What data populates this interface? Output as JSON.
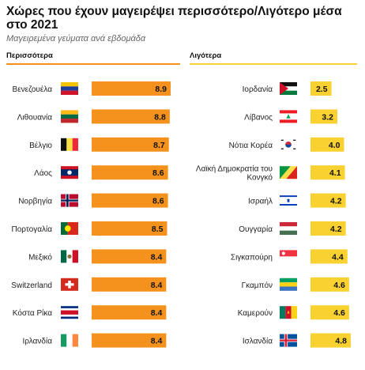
{
  "title": "Χώρες που έχουν μαγειρέψει περισσότερο/Λιγότερο μέσα στο 2021",
  "subtitle": "Μαγειρεμένα γεύματα ανά εβδομάδα",
  "colors": {
    "most_bar": "#F5921E",
    "least_bar": "#F9D130",
    "rule_most": "#F5921E",
    "rule_least": "#F9D130"
  },
  "chart_data": [
    {
      "type": "bar",
      "title": "Περισσότερα",
      "categories": [
        "Βενεζουέλα",
        "Λιθουανία",
        "Βέλγιο",
        "Λάος",
        "Νορβηγία",
        "Πορτογαλία",
        "Μεξικό",
        "Switzerland",
        "Κόστα Ρίκα",
        "Ιρλανδία"
      ],
      "values": [
        8.9,
        8.8,
        8.7,
        8.6,
        8.6,
        8.5,
        8.4,
        8.4,
        8.4,
        8.4
      ],
      "value_labels": [
        "8.9",
        "8.8",
        "8.7",
        "8.6",
        "8.6",
        "8.5",
        "8.4",
        "8.4",
        "8.4",
        "8.4"
      ],
      "flags": [
        "venezuela-flag",
        "lithuania-flag",
        "belgium-flag",
        "laos-flag",
        "norway-flag",
        "portugal-flag",
        "mexico-flag",
        "switzerland-flag",
        "costa-rica-flag",
        "ireland-flag"
      ],
      "orientation": "horizontal",
      "xlim": [
        0,
        8.9
      ]
    },
    {
      "type": "bar",
      "title": "Λιγότερα",
      "categories": [
        "Ιορδανία",
        "Λίβανος",
        "Νότια Κορέα",
        "Λαϊκή Δημοκρατία του Κονγκό",
        "Ισραήλ",
        "Ουγγαρία",
        "Σιγκαπούρη",
        "Γκαμπόν",
        "Καμερούν",
        "Ισλανδία"
      ],
      "values": [
        2.5,
        3.2,
        4.0,
        4.1,
        4.2,
        4.2,
        4.4,
        4.6,
        4.6,
        4.8
      ],
      "value_labels": [
        "2.5",
        "3.2",
        "4.0",
        "4.1",
        "4.2",
        "4.2",
        "4.4",
        "4.6",
        "4.6",
        "4.8"
      ],
      "flags": [
        "jordan-flag",
        "lebanon-flag",
        "south-korea-flag",
        "congo-flag",
        "israel-flag",
        "hungary-flag",
        "singapore-flag",
        "gabon-flag",
        "cameroon-flag",
        "iceland-flag"
      ],
      "orientation": "horizontal",
      "xlim": [
        0,
        4.8
      ]
    }
  ]
}
